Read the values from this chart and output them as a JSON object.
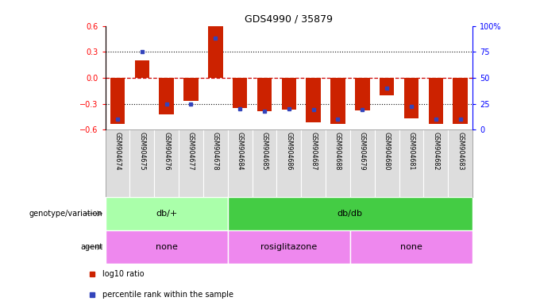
{
  "title": "GDS4990 / 35879",
  "samples": [
    "GSM904674",
    "GSM904675",
    "GSM904676",
    "GSM904677",
    "GSM904678",
    "GSM904684",
    "GSM904685",
    "GSM904686",
    "GSM904687",
    "GSM904688",
    "GSM904679",
    "GSM904680",
    "GSM904681",
    "GSM904682",
    "GSM904683"
  ],
  "log10_ratio": [
    -0.53,
    0.2,
    -0.42,
    -0.27,
    0.6,
    -0.35,
    -0.39,
    -0.37,
    -0.52,
    -0.53,
    -0.38,
    -0.2,
    -0.47,
    -0.53,
    -0.53
  ],
  "percentile": [
    10,
    75,
    25,
    25,
    88,
    20,
    18,
    20,
    19,
    10,
    19,
    40,
    22,
    10,
    10
  ],
  "ylim_min": -0.6,
  "ylim_max": 0.6,
  "yticks_left": [
    -0.6,
    -0.3,
    0.0,
    0.3,
    0.6
  ],
  "yticks_right": [
    0,
    25,
    50,
    75,
    100
  ],
  "bar_color": "#CC2200",
  "blue_color": "#3344BB",
  "zero_line_color": "#CC0000",
  "dot_line_color": "#111111",
  "genotype_groups": [
    {
      "label": "db/+",
      "start": 0,
      "end": 5,
      "color": "#AAFFAA"
    },
    {
      "label": "db/db",
      "start": 5,
      "end": 15,
      "color": "#44CC44"
    }
  ],
  "agent_groups": [
    {
      "label": "none",
      "start": 0,
      "end": 5,
      "color": "#EE88EE"
    },
    {
      "label": "rosiglitazone",
      "start": 5,
      "end": 10,
      "color": "#EE88EE"
    },
    {
      "label": "none",
      "start": 10,
      "end": 15,
      "color": "#EE88EE"
    }
  ],
  "genotype_label": "genotype/variation",
  "agent_label": "agent",
  "legend_red": "log10 ratio",
  "legend_blue": "percentile rank within the sample",
  "bar_width": 0.6
}
